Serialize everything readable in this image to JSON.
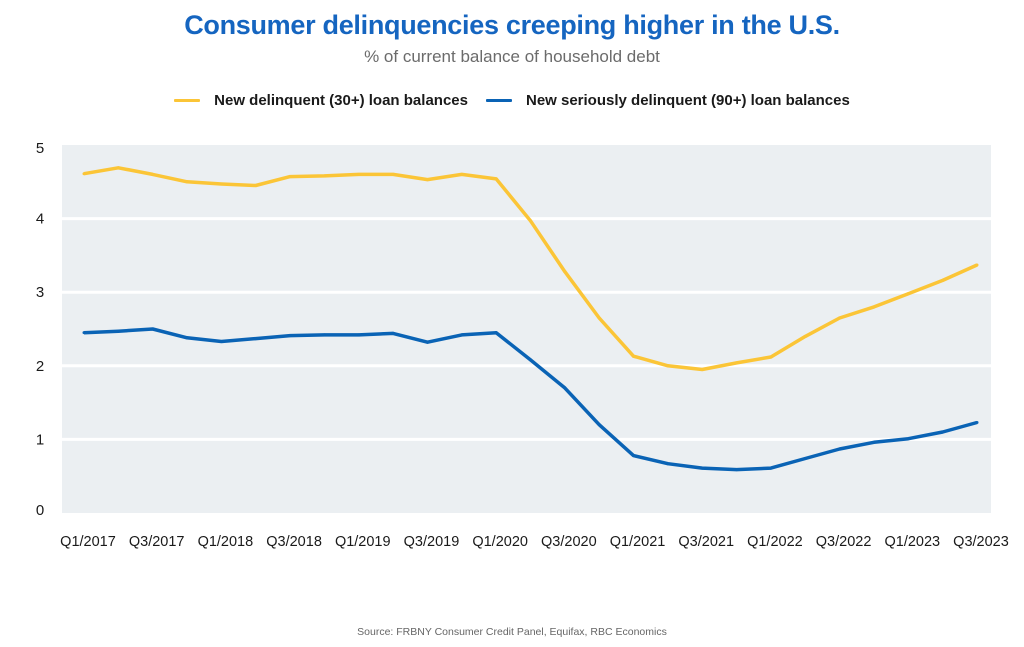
{
  "title": "Consumer delinquencies creeping higher in the U.S.",
  "subtitle": "% of current balance of household debt",
  "source": "Source: FRBNY Consumer Credit Panel, Equifax, RBC Economics",
  "colors": {
    "title": "#1565C0",
    "plot_background": "#EBEFF2",
    "gridline": "#FFFFFF",
    "series_30": "#FBC537",
    "series_90": "#0A63B5"
  },
  "chart_data": {
    "type": "line",
    "title": "Consumer delinquencies creeping higher in the U.S.",
    "subtitle": "% of current balance of household debt",
    "xlabel": "",
    "ylabel": "",
    "ylim": [
      0,
      5
    ],
    "yticks": [
      "0",
      "1",
      "2",
      "3",
      "4",
      "5"
    ],
    "grid": true,
    "legend": "top-center",
    "x": [
      "Q1/2017",
      "Q2/2017",
      "Q3/2017",
      "Q4/2017",
      "Q1/2018",
      "Q2/2018",
      "Q3/2018",
      "Q4/2018",
      "Q1/2019",
      "Q2/2019",
      "Q3/2019",
      "Q4/2019",
      "Q1/2020",
      "Q2/2020",
      "Q3/2020",
      "Q4/2020",
      "Q1/2021",
      "Q2/2021",
      "Q3/2021",
      "Q4/2021",
      "Q1/2022",
      "Q2/2022",
      "Q3/2022",
      "Q4/2022",
      "Q1/2023",
      "Q2/2023",
      "Q3/2023"
    ],
    "xtick_labels": [
      "Q1/2017",
      "Q3/2017",
      "Q1/2018",
      "Q3/2018",
      "Q1/2019",
      "Q3/2019",
      "Q1/2020",
      "Q3/2020",
      "Q1/2021",
      "Q3/2021",
      "Q1/2022",
      "Q3/2022",
      "Q1/2023",
      "Q3/2023"
    ],
    "series": [
      {
        "name": "New delinquent (30+) loan balances",
        "color": "#FBC537",
        "values": [
          4.61,
          4.69,
          4.6,
          4.5,
          4.47,
          4.45,
          4.57,
          4.58,
          4.6,
          4.6,
          4.53,
          4.6,
          4.54,
          3.97,
          3.28,
          2.65,
          2.13,
          2.0,
          1.95,
          2.04,
          2.12,
          2.4,
          2.65,
          2.8,
          2.98,
          3.16,
          3.37
        ]
      },
      {
        "name": "New seriously delinquent (90+) loan balances",
        "color": "#0A63B5",
        "values": [
          2.45,
          2.47,
          2.5,
          2.38,
          2.33,
          2.37,
          2.41,
          2.42,
          2.42,
          2.44,
          2.32,
          2.42,
          2.45,
          2.08,
          1.7,
          1.2,
          0.78,
          0.67,
          0.61,
          0.59,
          0.61,
          0.74,
          0.87,
          0.96,
          1.01,
          1.1,
          1.23
        ]
      }
    ]
  }
}
